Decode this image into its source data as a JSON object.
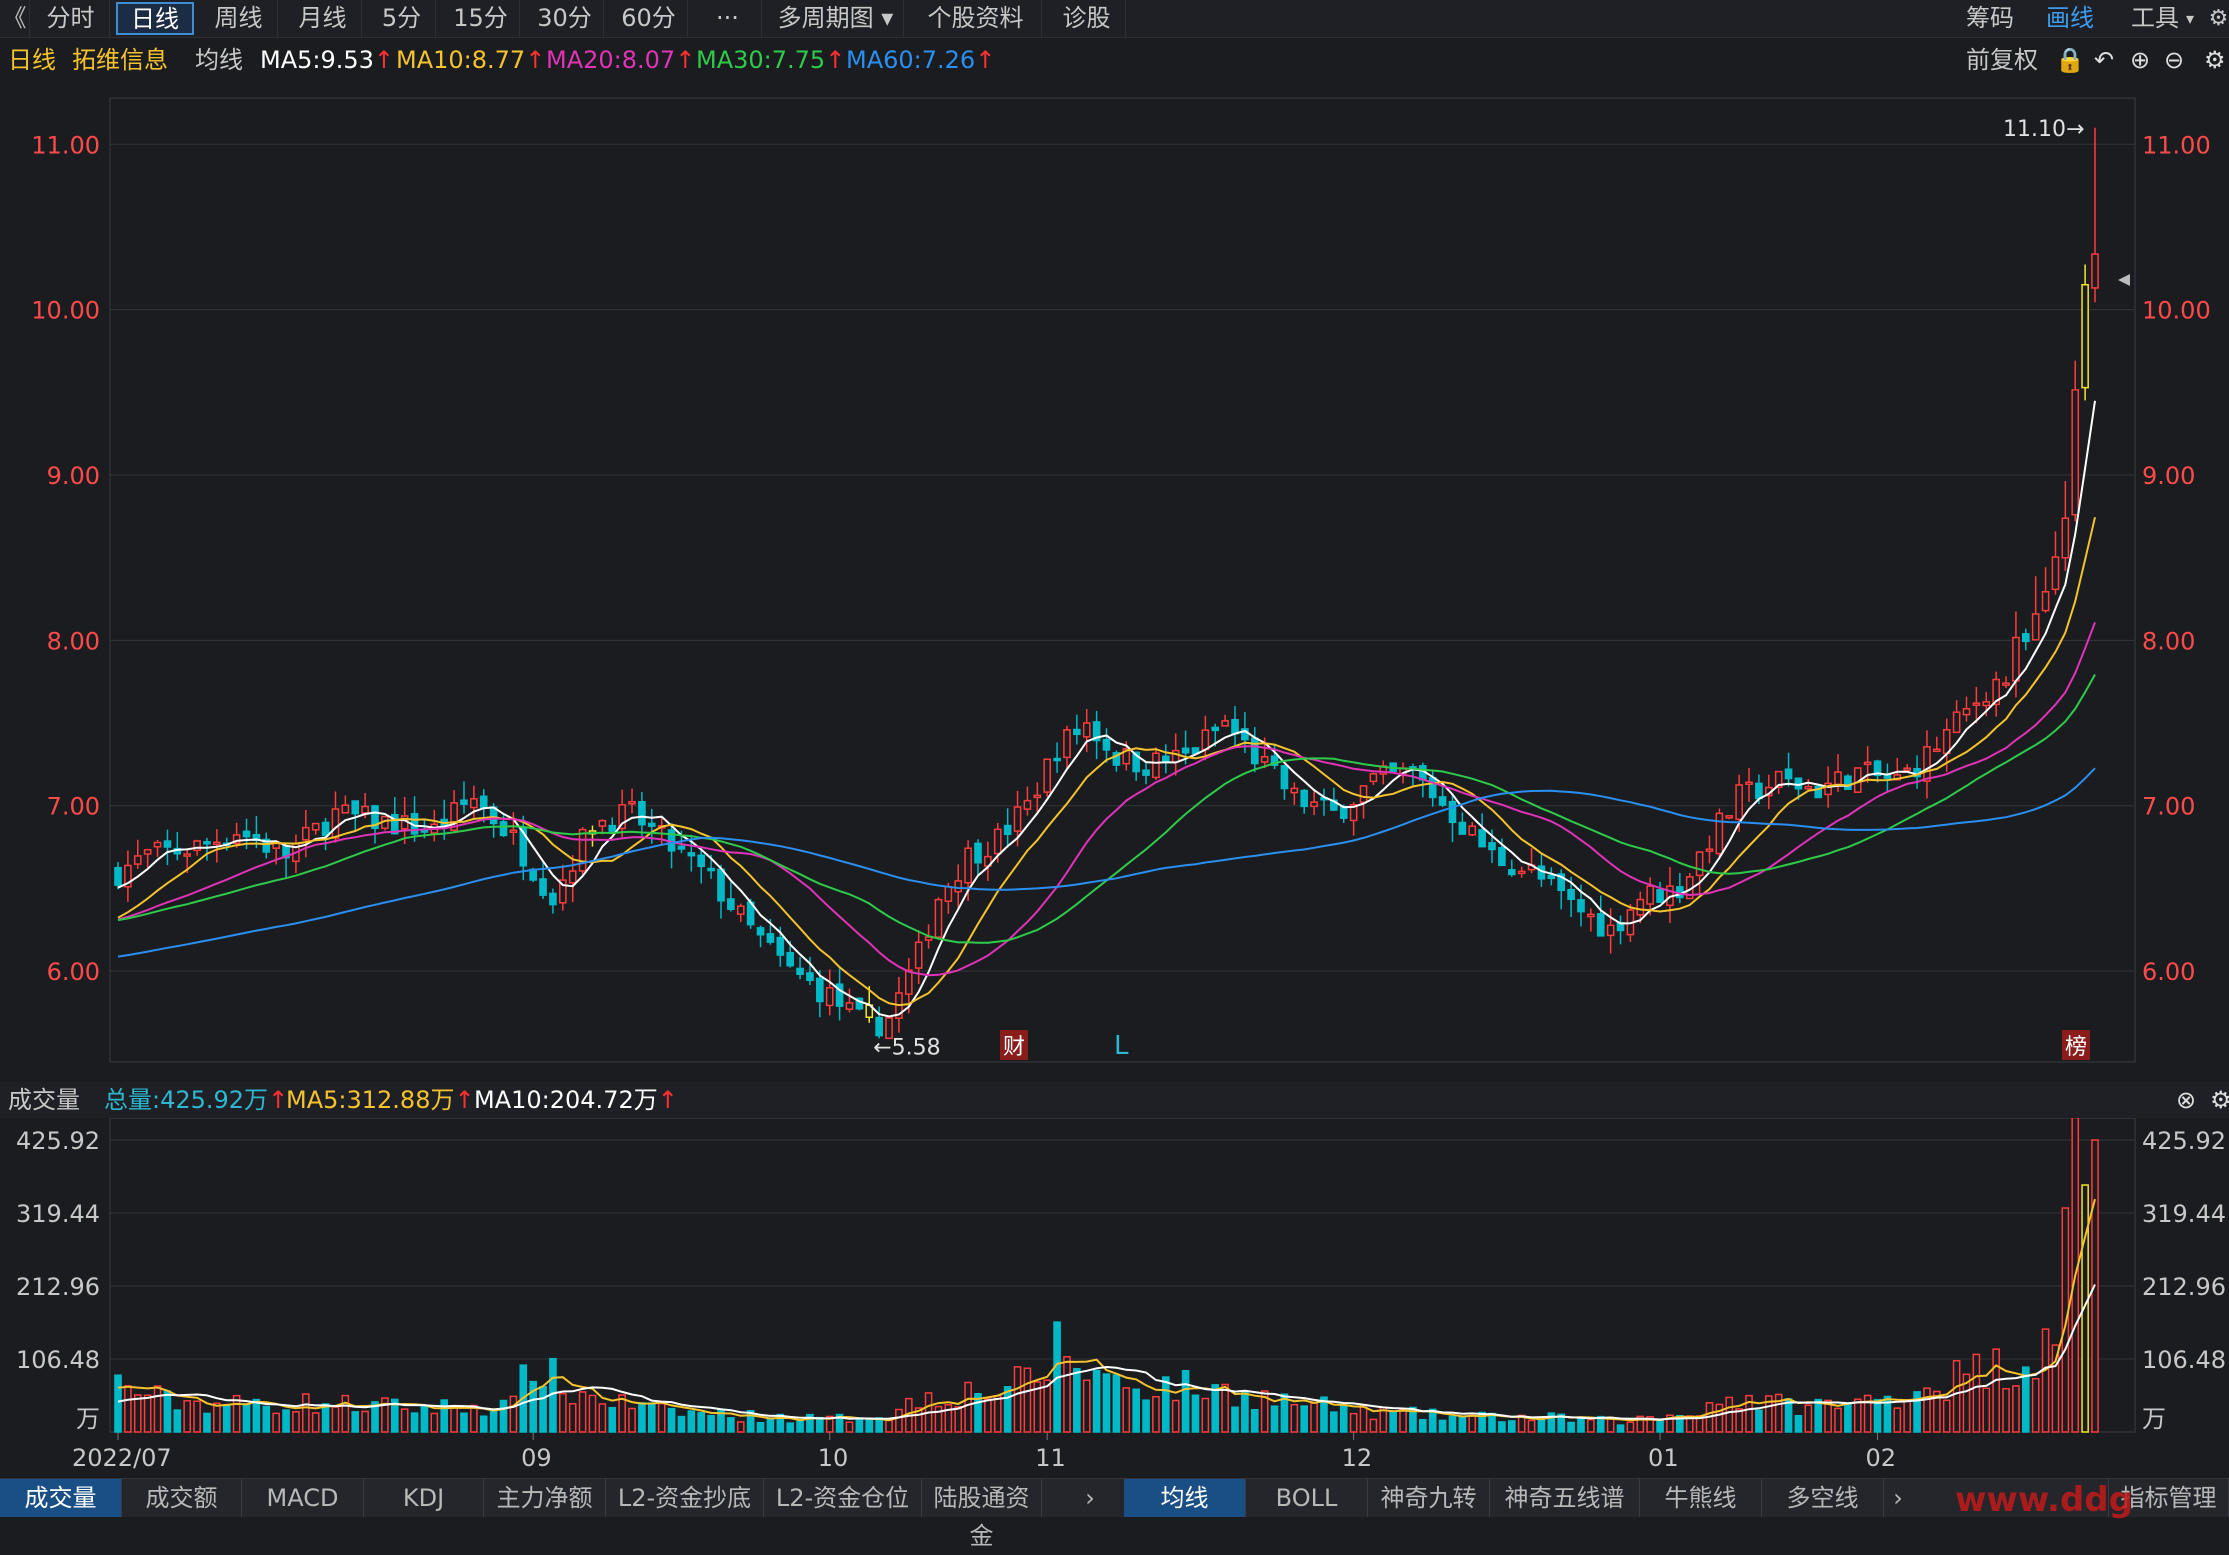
{
  "toolbar": {
    "back_glyph": "《",
    "tabs": [
      "分时",
      "日线",
      "周线",
      "月线",
      "5分",
      "15分",
      "30分",
      "60分",
      "···",
      "多周期图",
      "个股资料",
      "诊股"
    ],
    "active_tab": "日线",
    "right_items": [
      "筹码",
      "画线",
      "工具"
    ],
    "right_active": "画线",
    "dropdown_icon": "caret-down-icon"
  },
  "info": {
    "period": "日线",
    "stock_name": "拓维信息",
    "ma_label": "均线",
    "ma5": "MA5:9.53",
    "ma10": "MA10:8.77",
    "ma20": "MA20:8.07",
    "ma30": "MA30:7.75",
    "ma60": "MA60:7.26",
    "adjust": "前复权",
    "icons": [
      "lock-icon",
      "undo-icon",
      "zoom-in-icon",
      "zoom-out-icon",
      "gear-icon"
    ]
  },
  "volume_header": {
    "title": "成交量",
    "total": "总量:425.92万",
    "ma5": "MA5:312.88万",
    "ma10": "MA10:204.72万",
    "close_icon": "close-circle-icon"
  },
  "bottom": {
    "left_tabs": [
      "成交量",
      "成交额",
      "MACD",
      "KDJ",
      "主力净额",
      "L2-资金抄底",
      "L2-资金仓位",
      "陆股通资金"
    ],
    "left_active": "成交量",
    "right_tabs": [
      "均线",
      "BOLL",
      "神奇九转",
      "神奇五线谱",
      "牛熊线",
      "多空线"
    ],
    "right_active": "均线",
    "manage": "指标管理",
    "watermark": "www.ddg",
    "arrow_icon": "chevron-right-icon"
  },
  "colors": {
    "up": "#ff3b3b",
    "down": "#00b9c6",
    "doji_up": "#f5e52c",
    "ma5": "#ffffff",
    "ma10": "#f5c32c",
    "ma20": "#e033b8",
    "ma30": "#2ecb4a",
    "ma60": "#2a8ff0",
    "axis_text": "#ff4a4a",
    "grid": "#33343a"
  },
  "chart_data": {
    "type": "candlestick",
    "y_ticks": [
      "11.00",
      "10.00",
      "9.00",
      "8.00",
      "7.00",
      "6.00"
    ],
    "ylim": [
      5.45,
      11.28
    ],
    "x_ticks": [
      "2022/07",
      "09",
      "10",
      "11",
      "12",
      "01",
      "02"
    ],
    "x_tick_index": [
      0,
      42,
      72,
      94,
      125,
      156,
      178
    ],
    "annotations": {
      "high": "11.10→",
      "low": "←5.58",
      "badge_fin": "财",
      "badge_rank": "榜",
      "marker_L": "L"
    },
    "volume_ticks": [
      "425.92",
      "319.44",
      "212.96",
      "106.48",
      "万"
    ],
    "volume_ylim": [
      0,
      425.92
    ],
    "anchors": [
      [
        0,
        6.6
      ],
      [
        3,
        6.7
      ],
      [
        8,
        6.75
      ],
      [
        12,
        6.85
      ],
      [
        17,
        6.7
      ],
      [
        22,
        6.95
      ],
      [
        27,
        6.9
      ],
      [
        32,
        6.85
      ],
      [
        36,
        7.05
      ],
      [
        40,
        6.8
      ],
      [
        44,
        6.45
      ],
      [
        48,
        6.9
      ],
      [
        52,
        6.95
      ],
      [
        56,
        6.75
      ],
      [
        60,
        6.55
      ],
      [
        64,
        6.25
      ],
      [
        68,
        6.0
      ],
      [
        72,
        5.85
      ],
      [
        76,
        5.65
      ],
      [
        78,
        5.72
      ],
      [
        81,
        6.1
      ],
      [
        83,
        6.45
      ],
      [
        86,
        6.7
      ],
      [
        89,
        6.8
      ],
      [
        92,
        7.0
      ],
      [
        95,
        7.35
      ],
      [
        98,
        7.5
      ],
      [
        101,
        7.3
      ],
      [
        104,
        7.25
      ],
      [
        108,
        7.3
      ],
      [
        112,
        7.5
      ],
      [
        115,
        7.3
      ],
      [
        119,
        7.05
      ],
      [
        123,
        6.95
      ],
      [
        127,
        7.15
      ],
      [
        131,
        7.2
      ],
      [
        135,
        6.95
      ],
      [
        139,
        6.7
      ],
      [
        143,
        6.6
      ],
      [
        147,
        6.4
      ],
      [
        151,
        6.25
      ],
      [
        154,
        6.45
      ],
      [
        158,
        6.5
      ],
      [
        161,
        6.8
      ],
      [
        164,
        7.05
      ],
      [
        168,
        7.15
      ],
      [
        172,
        7.1
      ],
      [
        176,
        7.2
      ],
      [
        180,
        7.15
      ],
      [
        183,
        7.3
      ],
      [
        186,
        7.5
      ],
      [
        189,
        7.7
      ],
      [
        192,
        7.85
      ],
      [
        195,
        8.15
      ],
      [
        197,
        8.9
      ],
      [
        198,
        9.35
      ],
      [
        199,
        10.05
      ],
      [
        200,
        10.3
      ]
    ],
    "vol_anchors": [
      [
        0,
        70
      ],
      [
        5,
        45
      ],
      [
        12,
        40
      ],
      [
        20,
        42
      ],
      [
        30,
        35
      ],
      [
        40,
        38
      ],
      [
        42,
        110
      ],
      [
        45,
        60
      ],
      [
        55,
        30
      ],
      [
        65,
        22
      ],
      [
        72,
        18
      ],
      [
        78,
        25
      ],
      [
        82,
        55
      ],
      [
        88,
        60
      ],
      [
        93,
        75
      ],
      [
        95,
        125
      ],
      [
        98,
        90
      ],
      [
        102,
        70
      ],
      [
        108,
        65
      ],
      [
        114,
        55
      ],
      [
        120,
        40
      ],
      [
        126,
        30
      ],
      [
        135,
        22
      ],
      [
        145,
        20
      ],
      [
        152,
        15
      ],
      [
        158,
        25
      ],
      [
        163,
        50
      ],
      [
        168,
        40
      ],
      [
        175,
        38
      ],
      [
        180,
        55
      ],
      [
        185,
        75
      ],
      [
        190,
        95
      ],
      [
        194,
        110
      ],
      [
        196,
        190
      ],
      [
        197,
        260
      ],
      [
        198,
        400
      ],
      [
        199,
        310
      ],
      [
        200,
        425.92
      ]
    ],
    "ma_start": [
      {
        "name": "MA5",
        "value": 6.5
      },
      {
        "name": "MA10",
        "value": 6.3
      },
      {
        "name": "MA20",
        "value": 6.3
      },
      {
        "name": "MA30",
        "value": 6.3
      },
      {
        "name": "MA60",
        "value": 6.08
      }
    ]
  }
}
